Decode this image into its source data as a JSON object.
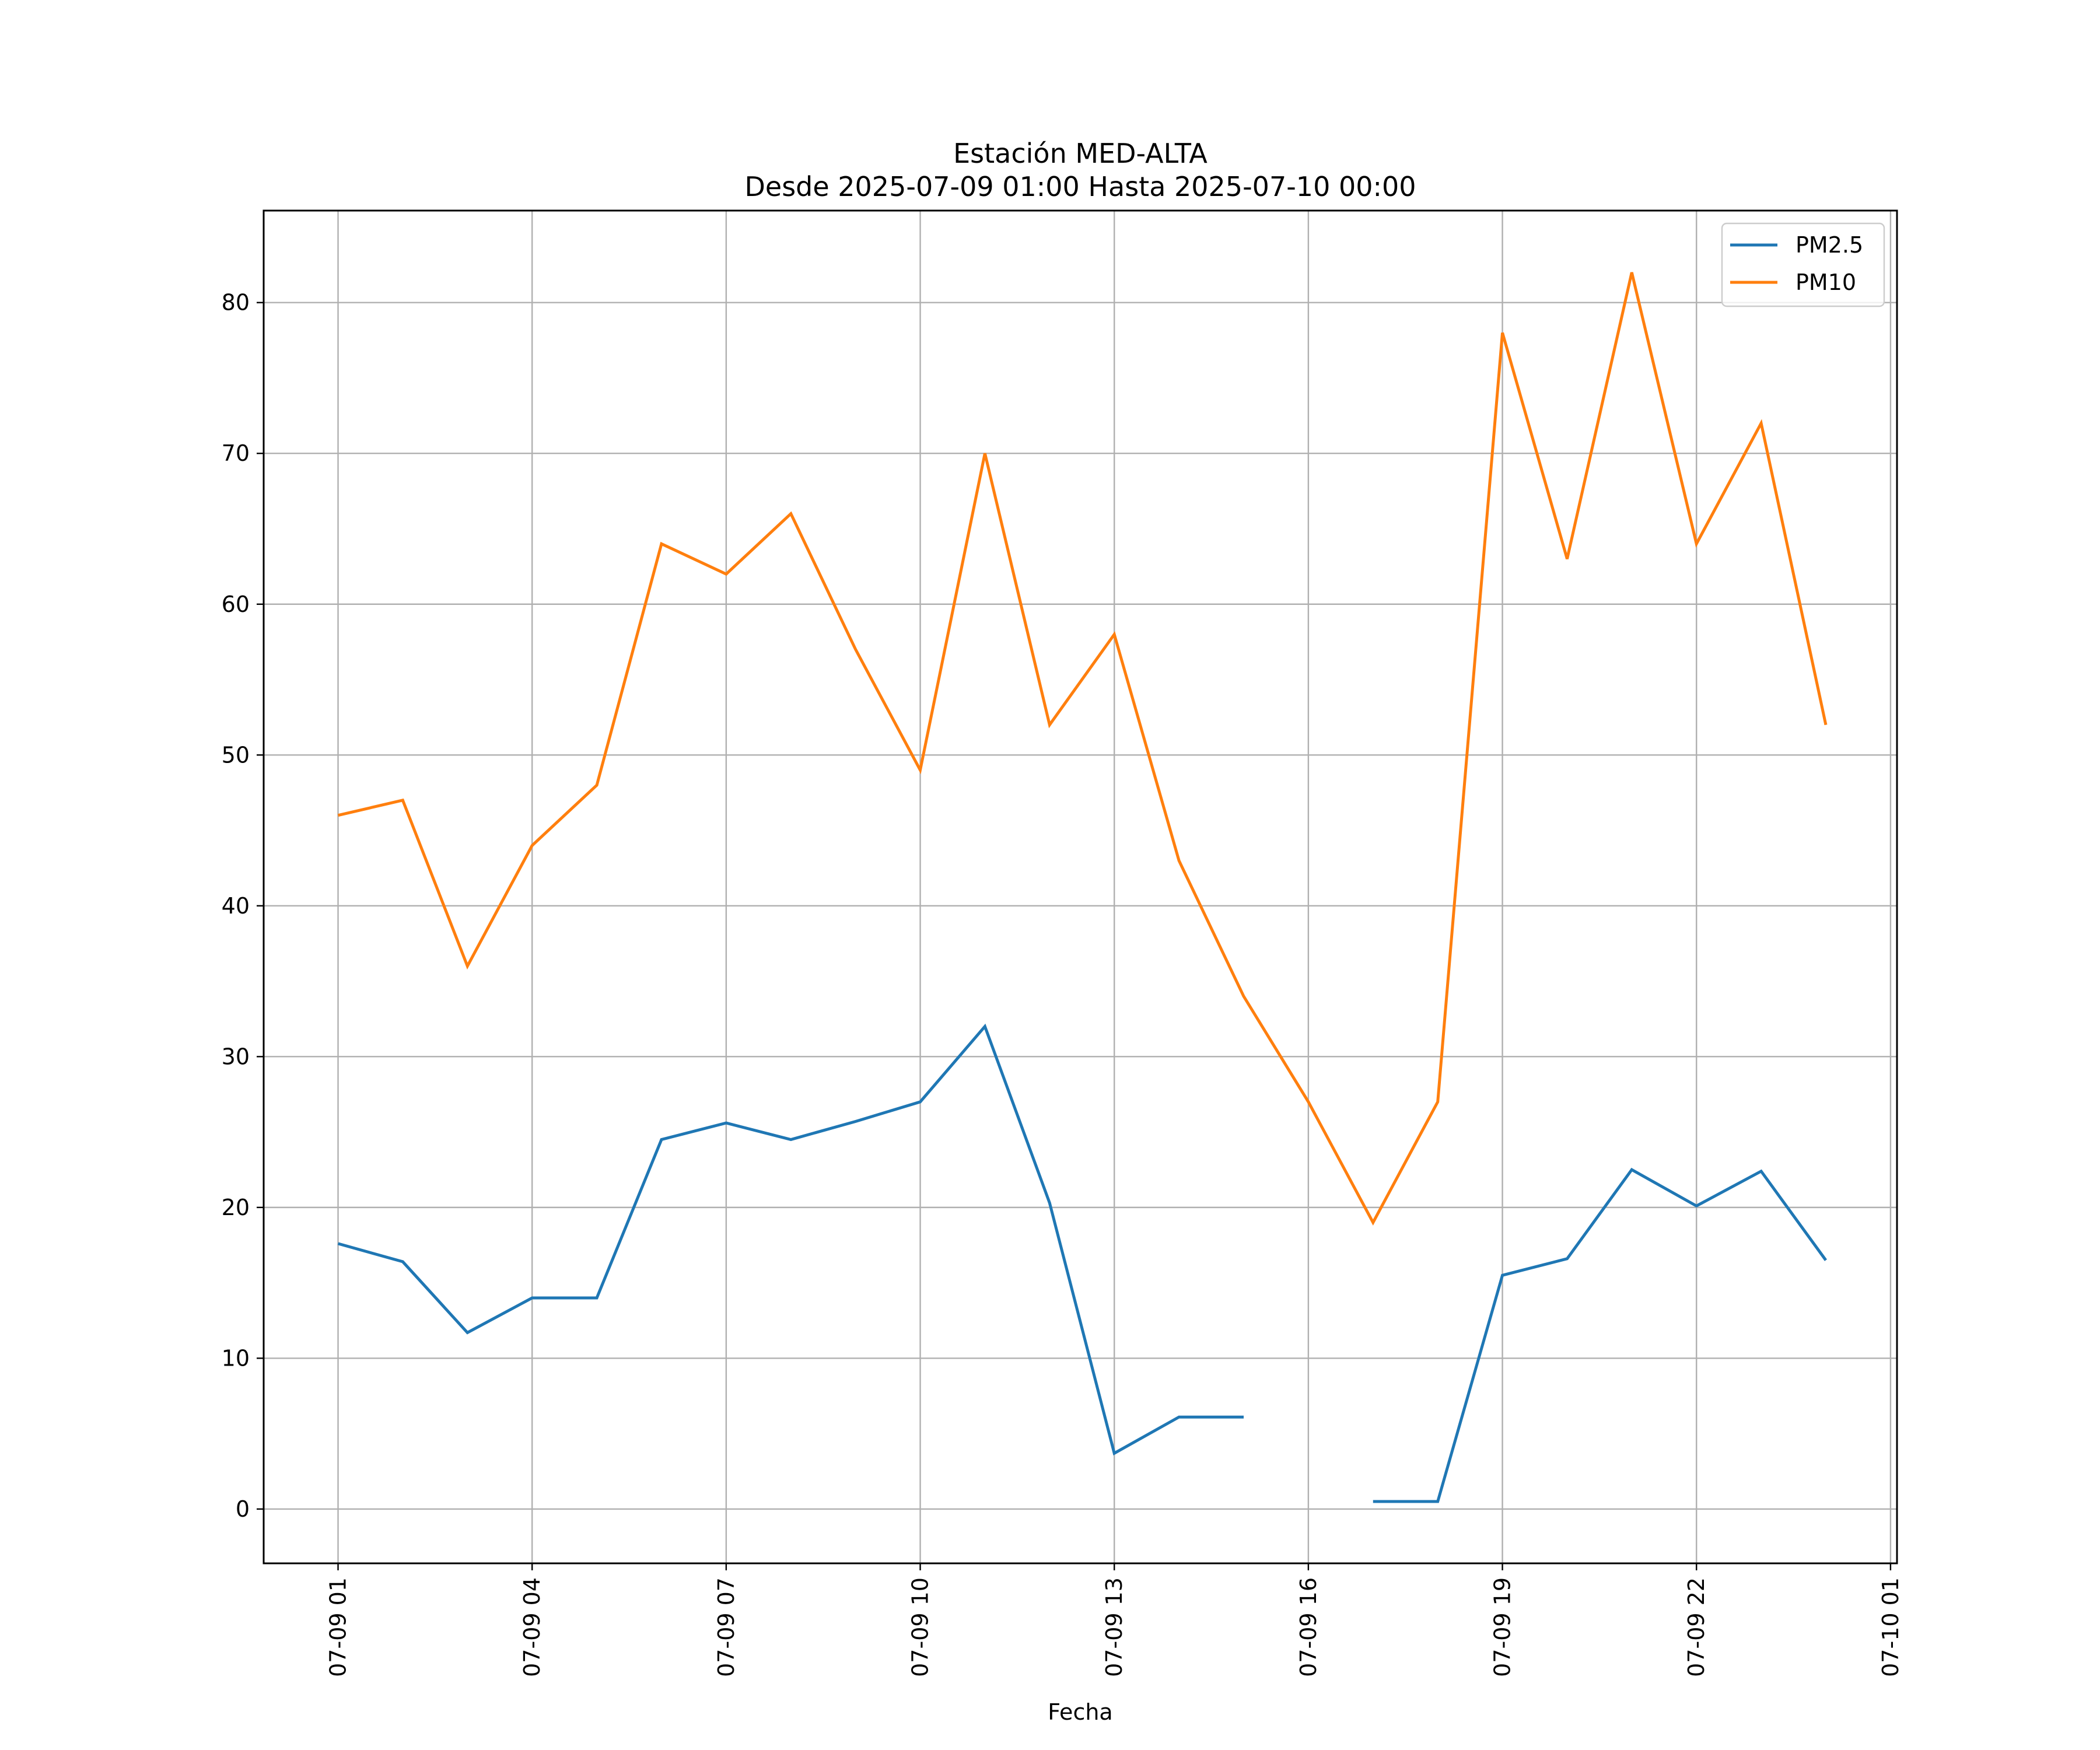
{
  "chart_data": {
    "type": "line",
    "title_line1": "Estación MED-ALTA",
    "title_line2": "Desde 2025-07-09 01:00 Hasta 2025-07-10 00:00",
    "xlabel": "Fecha",
    "ylabel": "",
    "x": [
      "07-09 01",
      "07-09 02",
      "07-09 03",
      "07-09 04",
      "07-09 05",
      "07-09 06",
      "07-09 07",
      "07-09 08",
      "07-09 09",
      "07-09 10",
      "07-09 11",
      "07-09 12",
      "07-09 13",
      "07-09 14",
      "07-09 15",
      "07-09 16",
      "07-09 17",
      "07-09 18",
      "07-09 19",
      "07-09 20",
      "07-09 21",
      "07-09 22",
      "07-09 23",
      "07-10 00"
    ],
    "x_hours": [
      1,
      2,
      3,
      4,
      5,
      6,
      7,
      8,
      9,
      10,
      11,
      12,
      13,
      14,
      15,
      16,
      17,
      18,
      19,
      20,
      21,
      22,
      23,
      24
    ],
    "xlim": [
      -0.15,
      25.1
    ],
    "xticks": [
      {
        "hour": 1,
        "label": "07-09 01"
      },
      {
        "hour": 4,
        "label": "07-09 04"
      },
      {
        "hour": 7,
        "label": "07-09 07"
      },
      {
        "hour": 10,
        "label": "07-09 10"
      },
      {
        "hour": 13,
        "label": "07-09 13"
      },
      {
        "hour": 16,
        "label": "07-09 16"
      },
      {
        "hour": 19,
        "label": "07-09 19"
      },
      {
        "hour": 22,
        "label": "07-09 22"
      },
      {
        "hour": 25,
        "label": "07-10 01"
      }
    ],
    "ylim": [
      -3.6,
      86.1
    ],
    "yticks": [
      0,
      10,
      20,
      30,
      40,
      50,
      60,
      70,
      80
    ],
    "grid": true,
    "legend_position": "top-right",
    "series": [
      {
        "name": "PM2.5",
        "color": "#1f77b4",
        "values": [
          17.6,
          16.4,
          11.7,
          14.0,
          14.0,
          24.5,
          25.6,
          24.5,
          25.7,
          27.0,
          32.0,
          20.3,
          3.7,
          6.1,
          6.1,
          null,
          0.5,
          0.5,
          15.5,
          16.6,
          22.5,
          20.1,
          22.4,
          16.5
        ]
      },
      {
        "name": "PM10",
        "color": "#ff7f0e",
        "values": [
          46,
          47,
          36,
          44,
          48,
          64,
          62,
          66,
          57,
          49,
          70,
          52,
          58,
          43,
          34,
          27,
          19,
          27,
          78,
          63,
          82,
          64,
          72,
          52
        ]
      }
    ]
  }
}
